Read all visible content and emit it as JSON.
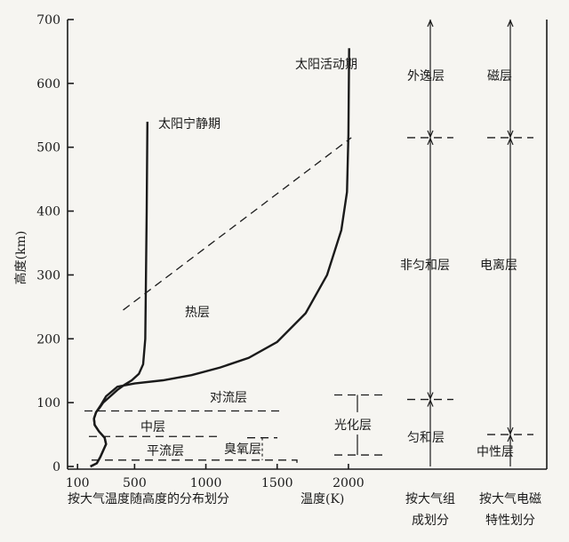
{
  "chart_data": {
    "type": "line",
    "title": "",
    "xlabel": "温度(K)",
    "xlabel_left": "按大气温度随高度的分布划分",
    "ylabel": "高度(km)",
    "x_ticks": [
      {
        "value": 100,
        "label": "100"
      },
      {
        "value": 500,
        "label": "500"
      },
      {
        "value": 1000,
        "label": "1000"
      },
      {
        "value": 1500,
        "label": "1500"
      },
      {
        "value": 2000,
        "label": "2000"
      }
    ],
    "y_ticks": [
      0,
      100,
      200,
      300,
      400,
      500,
      600,
      700
    ],
    "xlim": [
      30,
      2250
    ],
    "ylim": [
      0,
      700
    ],
    "series": [
      {
        "name": "太阳宁静期",
        "x": [
          190,
          235,
          260,
          280,
          300,
          290,
          250,
          220,
          215,
          230,
          255,
          280,
          330,
          380,
          430,
          480,
          530,
          560,
          575,
          580,
          585,
          590
        ],
        "y": [
          0,
          5,
          15,
          25,
          35,
          45,
          55,
          65,
          75,
          85,
          92,
          100,
          110,
          120,
          128,
          135,
          145,
          160,
          200,
          300,
          400,
          540
        ]
      },
      {
        "name": "太阳活动期",
        "x": [
          190,
          235,
          260,
          280,
          300,
          290,
          250,
          220,
          215,
          230,
          260,
          300,
          380,
          500,
          700,
          900,
          1100,
          1300,
          1500,
          1700,
          1850,
          1950,
          1990,
          2000,
          2005
        ],
        "y": [
          0,
          5,
          15,
          25,
          35,
          45,
          55,
          65,
          75,
          85,
          95,
          110,
          125,
          130,
          135,
          143,
          155,
          170,
          195,
          240,
          300,
          370,
          430,
          520,
          655
        ]
      }
    ],
    "exobase_line": {
      "x": [
        420,
        2020
      ],
      "y": [
        245,
        515
      ]
    },
    "temperature_regions": [
      {
        "label": "热层"
      },
      {
        "label": "对流层"
      },
      {
        "label": "中层"
      },
      {
        "label": "平流层"
      },
      {
        "label": "臭氧层"
      },
      {
        "label": "光化层"
      }
    ],
    "composition_column": {
      "title": "按大气组成划分",
      "layers": [
        {
          "label": "外逸层",
          "range": [
            515,
            700
          ]
        },
        {
          "label": "非匀和层",
          "range": [
            105,
            515
          ]
        },
        {
          "label": "匀和层",
          "range": [
            0,
            105
          ]
        }
      ]
    },
    "electromagnetic_column": {
      "title": "按大气电磁特性划分",
      "layers": [
        {
          "label": "磁层",
          "range": [
            515,
            700
          ]
        },
        {
          "label": "电离层",
          "range": [
            50,
            515
          ]
        },
        {
          "label": "中性层",
          "range": [
            0,
            50
          ]
        }
      ]
    },
    "grid": false
  }
}
